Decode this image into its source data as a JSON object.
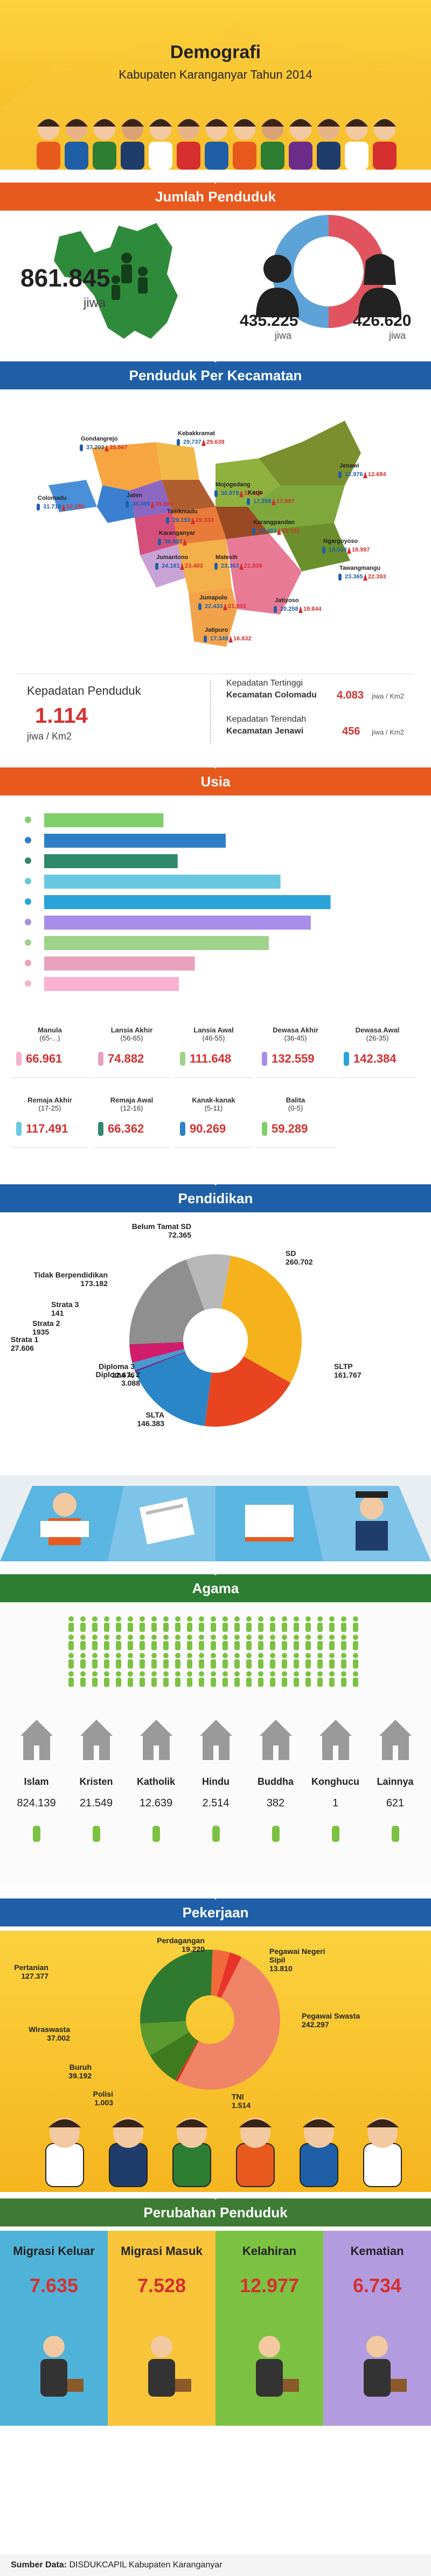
{
  "header": {
    "title": "Demografi",
    "subtitle": "Kabupaten Karanganyar Tahun 2014"
  },
  "colors": {
    "orange": "#e8591e",
    "blue": "#1f5fa8",
    "green": "#2d7d33",
    "yellow": "#f6c12d",
    "red": "#d62f2f"
  },
  "sections": {
    "jumlah": "Jumlah Penduduk",
    "kecamatan": "Penduduk Per Kecamatan",
    "usia": "Usia",
    "pendidikan": "Pendidikan",
    "agama": "Agama",
    "pekerjaan": "Pekerjaan",
    "perubahan": "Perubahan Penduduk"
  },
  "jumlah": {
    "total": "861.845",
    "total_unit": "jiwa",
    "male": "435.225",
    "male_unit": "jiwa",
    "female": "426.620",
    "female_unit": "jiwa"
  },
  "kecamatan_map": [
    {
      "name": "Gondangrejo",
      "m": "37.203",
      "f": "35.567"
    },
    {
      "name": "Colomadu",
      "m": "31.718",
      "f": "32.180"
    },
    {
      "name": "Kebakkramat",
      "m": "29.737",
      "f": "29.639"
    },
    {
      "name": "Jaten",
      "m": "38.495",
      "f": "38.654"
    },
    {
      "name": "Tasikmadu",
      "m": "29.153",
      "f": "29.333"
    },
    {
      "name": "Mojogedang",
      "m": "30.879",
      "f": "32.118"
    },
    {
      "name": "Kerjo",
      "m": "17.388",
      "f": "17.987"
    },
    {
      "name": "Jenawi",
      "m": "12.976",
      "f": "12.684"
    },
    {
      "name": "Karanganyar",
      "m": "38.897",
      "f": ""
    },
    {
      "name": "Karangpandan",
      "m": "20.403",
      "f": "20.715"
    },
    {
      "name": "Matesih",
      "m": "23.363",
      "f": "21.838"
    },
    {
      "name": "Ngargoyoso",
      "m": "18.639",
      "f": "16.997"
    },
    {
      "name": "Tawangmangu",
      "m": "23.365",
      "f": "22.393"
    },
    {
      "name": "Jumantono",
      "m": "24.181",
      "f": "23.403"
    },
    {
      "name": "Jumapolo",
      "m": "22.433",
      "f": "21.943"
    },
    {
      "name": "Jatiyoso",
      "m": "20.258",
      "f": "19.844"
    },
    {
      "name": "Jatipuro",
      "m": "17.349",
      "f": "16.832"
    }
  ],
  "kepadatan": {
    "label": "Kepadatan Penduduk",
    "value": "1.114",
    "unit": "jiwa / Km2",
    "high_label": "Kepadatan Tertinggi",
    "high_name": "Kecamatan Colomadu",
    "high_value": "4.083",
    "high_unit": "jiwa / Km2",
    "low_label": "Kepadatan Terendah",
    "low_name": "Kecamatan Jenawi",
    "low_value": "456",
    "low_unit": "jiwa / Km2"
  },
  "chart_data": [
    {
      "type": "bar",
      "categories": [
        "Manula (65-...)",
        "Lansia Akhir (56-65)",
        "Lansia Awal (46-55)",
        "Dewasa Akhir (36-45)",
        "Dewasa Awal (26-35)",
        "Remaja Akhir (17-25)",
        "Remaja Awal (12-16)",
        "Kanak-kanak (5-11)",
        "Balita (0-5)"
      ],
      "values": [
        66961,
        74882,
        111648,
        132559,
        142384,
        117491,
        66362,
        90269,
        59289
      ],
      "series_colors": [
        "#f8b2cf",
        "#e8a1bf",
        "#9fd28b",
        "#a88de8",
        "#2aa4d8",
        "#69c8e0",
        "#2e8a6b",
        "#2f7fc7",
        "#7fcf6b"
      ]
    },
    {
      "type": "pie",
      "categories": [
        "Belum Tamat SD",
        "SD",
        "SLTP",
        "SLTA",
        "Diploma 1, 2",
        "Diploma 3",
        "Strata 1",
        "Strata 2",
        "Strata 3",
        "Tidak Berpendidikan"
      ],
      "values": [
        72365,
        260702,
        161767,
        146383,
        3088,
        12676,
        27606,
        1935,
        141,
        173182
      ],
      "series_colors": [
        "#b8b8b8",
        "#f6b21c",
        "#e8441f",
        "#2a86c7",
        "#6c2c8a",
        "#4a9ad0",
        "#d11c6b",
        "#b01c58",
        "#8a1c46",
        "#8f8f8f"
      ]
    },
    {
      "type": "pie",
      "categories": [
        "Perdagangan",
        "Pegawai Negeri Sipil",
        "Pegawai Swasta",
        "TNI",
        "Polisi",
        "Buruh",
        "Wiraswasta",
        "Pertanian"
      ],
      "values": [
        19220,
        13810,
        242297,
        1514,
        1003,
        39192,
        37002,
        127377
      ],
      "series_colors": [
        "#f26a3c",
        "#e8332a",
        "#f08466",
        "#c91f1f",
        "#e13b2e",
        "#3e7b1f",
        "#5b9a2e",
        "#2f7a2f"
      ]
    }
  ],
  "usia_labels": [
    {
      "name": "Manula",
      "range": "(65-...)",
      "value": "66.961"
    },
    {
      "name": "Lansia Akhir",
      "range": "(56-65)",
      "value": "74.882"
    },
    {
      "name": "Lansia Awal",
      "range": "(46-55)",
      "value": "111.648"
    },
    {
      "name": "Dewasa Akhir",
      "range": "(36-45)",
      "value": "132.559"
    },
    {
      "name": "Dewasa Awal",
      "range": "(26-35)",
      "value": "142.384"
    },
    {
      "name": "Remaja Akhir",
      "range": "(17-25)",
      "value": "117.491"
    },
    {
      "name": "Remaja Awal",
      "range": "(12-16)",
      "value": "66.362"
    },
    {
      "name": "Kanak-kanak",
      "range": "(5-11)",
      "value": "90.269"
    },
    {
      "name": "Balita",
      "range": "(0-5)",
      "value": "59.289"
    }
  ],
  "pendidikan_labels": [
    {
      "name": "Belum Tamat SD",
      "value": "72.365"
    },
    {
      "name": "SD",
      "value": "260.702"
    },
    {
      "name": "SLTP",
      "value": "161.767"
    },
    {
      "name": "SLTA",
      "value": "146.383"
    },
    {
      "name": "Diploma 1, 2",
      "value": "3.088"
    },
    {
      "name": "Diploma 3",
      "value": "12.676"
    },
    {
      "name": "Strata 1",
      "value": "27.606"
    },
    {
      "name": "Strata 2",
      "value": "1935"
    },
    {
      "name": "Strata 3",
      "value": "141"
    },
    {
      "name": "Tidak Berpendidikan",
      "value": "173.182"
    }
  ],
  "agama": [
    {
      "name": "Islam",
      "value": "824.139",
      "icon": "mosque-icon"
    },
    {
      "name": "Kristen",
      "value": "21.549",
      "icon": "church-icon"
    },
    {
      "name": "Katholik",
      "value": "12.639",
      "icon": "cathedral-icon"
    },
    {
      "name": "Hindu",
      "value": "2.514",
      "icon": "temple-icon"
    },
    {
      "name": "Buddha",
      "value": "382",
      "icon": "stupa-icon"
    },
    {
      "name": "Konghucu",
      "value": "1",
      "icon": "pagoda-icon"
    },
    {
      "name": "Lainnya",
      "value": "621",
      "icon": "shrine-icon"
    }
  ],
  "pekerjaan_labels": [
    {
      "name": "Perdagangan",
      "value": "19.220"
    },
    {
      "name": "Pegawai Negeri Sipil",
      "value": "13.810"
    },
    {
      "name": "Pegawai Swasta",
      "value": "242.297"
    },
    {
      "name": "TNI",
      "value": "1.514"
    },
    {
      "name": "Polisi",
      "value": "1.003"
    },
    {
      "name": "Buruh",
      "value": "39.192"
    },
    {
      "name": "Wiraswasta",
      "value": "37.002"
    },
    {
      "name": "Pertanian",
      "value": "127.377"
    }
  ],
  "perubahan": [
    {
      "name": "Migrasi Keluar",
      "value": "7.635",
      "color": "#4fb3d9"
    },
    {
      "name": "Migrasi Masuk",
      "value": "7.528",
      "color": "#f7c43a"
    },
    {
      "name": "Kelahiran",
      "value": "12.977",
      "color": "#7cc242"
    },
    {
      "name": "Kematian",
      "value": "6.734",
      "color": "#b39be0"
    }
  ],
  "footer": {
    "label": "Sumber Data:",
    "text": "DISDUKCAPIL Kabupaten Karanganyar"
  }
}
